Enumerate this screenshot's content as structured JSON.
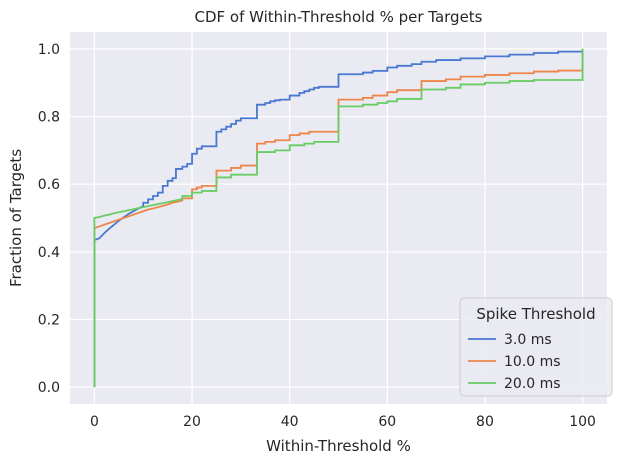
{
  "chart_data": {
    "type": "line",
    "title": "CDF of Within-Threshold % per Targets",
    "xlabel": "Within-Threshold %",
    "ylabel": "Fraction of Targets",
    "xlim": [
      -5,
      105
    ],
    "ylim": [
      -0.05,
      1.05
    ],
    "xticks": [
      0,
      20,
      40,
      60,
      80,
      100
    ],
    "xtick_labels": [
      "0",
      "20",
      "40",
      "60",
      "80",
      "100"
    ],
    "yticks": [
      0.0,
      0.2,
      0.4,
      0.6,
      0.8,
      1.0
    ],
    "ytick_labels": [
      "0.0",
      "0.2",
      "0.4",
      "0.6",
      "0.8",
      "1.0"
    ],
    "grid": true,
    "legend": {
      "title": "Spike Threshold",
      "placement": "bottom-right"
    },
    "series": [
      {
        "name": "3.0 ms",
        "color": "#4878d0",
        "points": [
          [
            0,
            0
          ],
          [
            0,
            0.435
          ],
          [
            1,
            0.44
          ],
          [
            2,
            0.455
          ],
          [
            3,
            0.468
          ],
          [
            4,
            0.48
          ],
          [
            5,
            0.492
          ],
          [
            6,
            0.502
          ],
          [
            7,
            0.512
          ],
          [
            8,
            0.52
          ],
          [
            9,
            0.528
          ],
          [
            10,
            0.535
          ],
          [
            10,
            0.545
          ],
          [
            11,
            0.545
          ],
          [
            11,
            0.555
          ],
          [
            12,
            0.555
          ],
          [
            12,
            0.565
          ],
          [
            13,
            0.565
          ],
          [
            13,
            0.575
          ],
          [
            14,
            0.575
          ],
          [
            14,
            0.595
          ],
          [
            15,
            0.595
          ],
          [
            15,
            0.61
          ],
          [
            16,
            0.61
          ],
          [
            16,
            0.618
          ],
          [
            16.7,
            0.618
          ],
          [
            16.7,
            0.645
          ],
          [
            18,
            0.645
          ],
          [
            18,
            0.652
          ],
          [
            19,
            0.652
          ],
          [
            19,
            0.66
          ],
          [
            20,
            0.66
          ],
          [
            20,
            0.69
          ],
          [
            21,
            0.69
          ],
          [
            21,
            0.705
          ],
          [
            22,
            0.705
          ],
          [
            22,
            0.712
          ],
          [
            25,
            0.712
          ],
          [
            25,
            0.755
          ],
          [
            26,
            0.755
          ],
          [
            26,
            0.762
          ],
          [
            27,
            0.762
          ],
          [
            27,
            0.77
          ],
          [
            28,
            0.77
          ],
          [
            28,
            0.778
          ],
          [
            29,
            0.778
          ],
          [
            29,
            0.788
          ],
          [
            30,
            0.788
          ],
          [
            30,
            0.795
          ],
          [
            33.3,
            0.795
          ],
          [
            33.3,
            0.835
          ],
          [
            35,
            0.835
          ],
          [
            35,
            0.84
          ],
          [
            36,
            0.84
          ],
          [
            36,
            0.845
          ],
          [
            37,
            0.845
          ],
          [
            37,
            0.848
          ],
          [
            38,
            0.848
          ],
          [
            38,
            0.85
          ],
          [
            40,
            0.85
          ],
          [
            40,
            0.862
          ],
          [
            42,
            0.862
          ],
          [
            42,
            0.87
          ],
          [
            43,
            0.87
          ],
          [
            43,
            0.875
          ],
          [
            44,
            0.875
          ],
          [
            44,
            0.88
          ],
          [
            45,
            0.88
          ],
          [
            45,
            0.885
          ],
          [
            46,
            0.885
          ],
          [
            46,
            0.888
          ],
          [
            50,
            0.888
          ],
          [
            50,
            0.925
          ],
          [
            55,
            0.925
          ],
          [
            55,
            0.93
          ],
          [
            57,
            0.93
          ],
          [
            57,
            0.935
          ],
          [
            60,
            0.935
          ],
          [
            60,
            0.945
          ],
          [
            62,
            0.945
          ],
          [
            62,
            0.95
          ],
          [
            65,
            0.95
          ],
          [
            65,
            0.955
          ],
          [
            67,
            0.955
          ],
          [
            67,
            0.962
          ],
          [
            70,
            0.962
          ],
          [
            70,
            0.967
          ],
          [
            75,
            0.967
          ],
          [
            75,
            0.972
          ],
          [
            80,
            0.972
          ],
          [
            80,
            0.978
          ],
          [
            85,
            0.978
          ],
          [
            85,
            0.983
          ],
          [
            90,
            0.983
          ],
          [
            90,
            0.988
          ],
          [
            95,
            0.988
          ],
          [
            95,
            0.992
          ],
          [
            100,
            0.992
          ],
          [
            100,
            1.0
          ]
        ]
      },
      {
        "name": "10.0 ms",
        "color": "#ee854a",
        "points": [
          [
            0,
            0
          ],
          [
            0,
            0.47
          ],
          [
            1,
            0.475
          ],
          [
            2,
            0.48
          ],
          [
            3,
            0.485
          ],
          [
            4,
            0.49
          ],
          [
            5,
            0.495
          ],
          [
            6,
            0.5
          ],
          [
            7,
            0.505
          ],
          [
            8,
            0.51
          ],
          [
            9,
            0.515
          ],
          [
            10,
            0.52
          ],
          [
            11,
            0.525
          ],
          [
            12,
            0.528
          ],
          [
            13,
            0.532
          ],
          [
            14,
            0.536
          ],
          [
            15,
            0.54
          ],
          [
            16,
            0.545
          ],
          [
            17,
            0.548
          ],
          [
            18,
            0.552
          ],
          [
            18,
            0.558
          ],
          [
            20,
            0.558
          ],
          [
            20,
            0.585
          ],
          [
            21,
            0.585
          ],
          [
            21,
            0.59
          ],
          [
            22,
            0.59
          ],
          [
            22,
            0.595
          ],
          [
            25,
            0.595
          ],
          [
            25,
            0.64
          ],
          [
            28,
            0.64
          ],
          [
            28,
            0.648
          ],
          [
            30,
            0.648
          ],
          [
            30,
            0.655
          ],
          [
            33.3,
            0.655
          ],
          [
            33.3,
            0.72
          ],
          [
            35,
            0.72
          ],
          [
            35,
            0.725
          ],
          [
            37,
            0.725
          ],
          [
            37,
            0.73
          ],
          [
            40,
            0.73
          ],
          [
            40,
            0.745
          ],
          [
            42,
            0.745
          ],
          [
            42,
            0.75
          ],
          [
            44,
            0.75
          ],
          [
            44,
            0.755
          ],
          [
            50,
            0.755
          ],
          [
            50,
            0.85
          ],
          [
            55,
            0.85
          ],
          [
            55,
            0.855
          ],
          [
            57,
            0.855
          ],
          [
            57,
            0.862
          ],
          [
            60,
            0.862
          ],
          [
            60,
            0.872
          ],
          [
            62,
            0.872
          ],
          [
            62,
            0.878
          ],
          [
            67,
            0.878
          ],
          [
            67,
            0.905
          ],
          [
            72,
            0.905
          ],
          [
            72,
            0.91
          ],
          [
            75,
            0.91
          ],
          [
            75,
            0.918
          ],
          [
            80,
            0.918
          ],
          [
            80,
            0.923
          ],
          [
            85,
            0.923
          ],
          [
            85,
            0.928
          ],
          [
            90,
            0.928
          ],
          [
            90,
            0.933
          ],
          [
            95,
            0.933
          ],
          [
            95,
            0.936
          ],
          [
            100,
            0.936
          ],
          [
            100,
            1.0
          ]
        ]
      },
      {
        "name": "20.0 ms",
        "color": "#6acc64",
        "points": [
          [
            0,
            0
          ],
          [
            0,
            0.5
          ],
          [
            1,
            0.503
          ],
          [
            2,
            0.507
          ],
          [
            3,
            0.51
          ],
          [
            4,
            0.514
          ],
          [
            5,
            0.517
          ],
          [
            6,
            0.52
          ],
          [
            7,
            0.523
          ],
          [
            8,
            0.526
          ],
          [
            9,
            0.529
          ],
          [
            10,
            0.532
          ],
          [
            11,
            0.535
          ],
          [
            12,
            0.538
          ],
          [
            13,
            0.541
          ],
          [
            14,
            0.544
          ],
          [
            15,
            0.547
          ],
          [
            16,
            0.55
          ],
          [
            17,
            0.553
          ],
          [
            18,
            0.556
          ],
          [
            18,
            0.565
          ],
          [
            20,
            0.565
          ],
          [
            20,
            0.575
          ],
          [
            22,
            0.575
          ],
          [
            22,
            0.58
          ],
          [
            25,
            0.58
          ],
          [
            25,
            0.62
          ],
          [
            28,
            0.62
          ],
          [
            28,
            0.628
          ],
          [
            33.3,
            0.628
          ],
          [
            33.3,
            0.695
          ],
          [
            37,
            0.695
          ],
          [
            37,
            0.7
          ],
          [
            40,
            0.7
          ],
          [
            40,
            0.715
          ],
          [
            43,
            0.715
          ],
          [
            43,
            0.72
          ],
          [
            45,
            0.72
          ],
          [
            45,
            0.725
          ],
          [
            50,
            0.725
          ],
          [
            50,
            0.83
          ],
          [
            55,
            0.83
          ],
          [
            55,
            0.835
          ],
          [
            58,
            0.835
          ],
          [
            58,
            0.84
          ],
          [
            60,
            0.84
          ],
          [
            60,
            0.845
          ],
          [
            62,
            0.845
          ],
          [
            62,
            0.852
          ],
          [
            67,
            0.852
          ],
          [
            67,
            0.88
          ],
          [
            72,
            0.88
          ],
          [
            72,
            0.885
          ],
          [
            75,
            0.885
          ],
          [
            75,
            0.895
          ],
          [
            80,
            0.895
          ],
          [
            80,
            0.9
          ],
          [
            85,
            0.9
          ],
          [
            85,
            0.905
          ],
          [
            90,
            0.905
          ],
          [
            90,
            0.908
          ],
          [
            100,
            0.908
          ],
          [
            100,
            1.0
          ]
        ]
      }
    ]
  }
}
